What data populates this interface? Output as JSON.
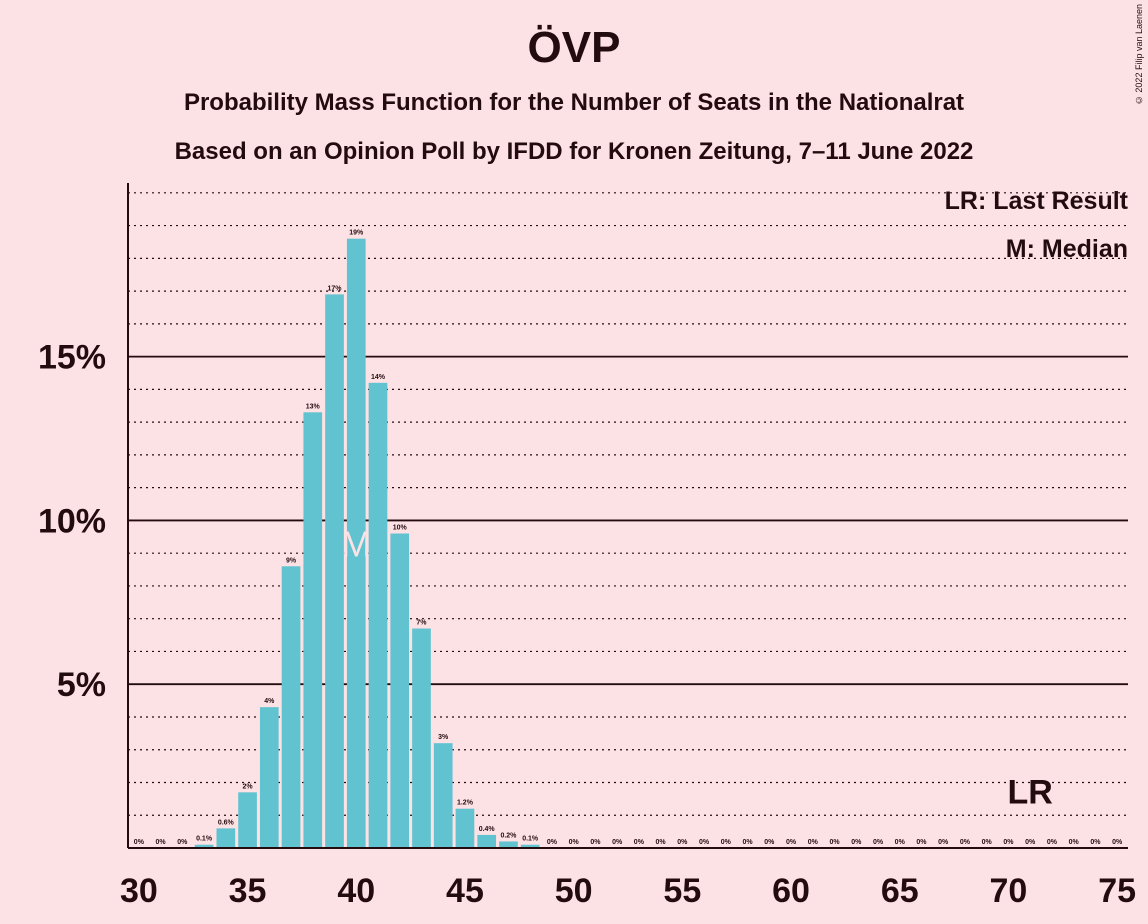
{
  "title": "ÖVP",
  "subtitle_1": "Probability Mass Function for the Number of Seats in the Nationalrat",
  "subtitle_2": "Based on an Opinion Poll by IFDD for Kronen Zeitung, 7–11 June 2022",
  "copyright": "© 2022 Filip van Laenen",
  "legend": {
    "last_result": "LR: Last Result",
    "median": "M: Median"
  },
  "colors": {
    "background": "#fde2e5",
    "bar": "#62c3d0",
    "text": "#230c10"
  },
  "chart_data": {
    "type": "bar",
    "x": [
      30,
      31,
      32,
      33,
      34,
      35,
      36,
      37,
      38,
      39,
      40,
      41,
      42,
      43,
      44,
      45,
      46,
      47,
      48,
      49,
      50,
      51,
      52,
      53,
      54,
      55,
      56,
      57,
      58,
      59,
      60,
      61,
      62,
      63,
      64,
      65,
      66,
      67,
      68,
      69,
      70,
      71,
      72,
      73,
      74,
      75
    ],
    "values": [
      0,
      0,
      0,
      0.1,
      0.6,
      1.7,
      4.3,
      8.6,
      13.3,
      16.9,
      18.6,
      14.2,
      9.6,
      6.7,
      3.2,
      1.2,
      0.4,
      0.2,
      0.1,
      0,
      0,
      0,
      0,
      0,
      0,
      0,
      0,
      0,
      0,
      0,
      0,
      0,
      0,
      0,
      0,
      0,
      0,
      0,
      0,
      0,
      0,
      0,
      0,
      0,
      0,
      0
    ],
    "labels": [
      "0%",
      "0%",
      "0%",
      "0.1%",
      "0.6%",
      "2%",
      "4%",
      "9%",
      "13%",
      "17%",
      "19%",
      "14%",
      "10%",
      "7%",
      "3%",
      "1.2%",
      "0.4%",
      "0.2%",
      "0.1%",
      "0%",
      "0%",
      "0%",
      "0%",
      "0%",
      "0%",
      "0%",
      "0%",
      "0%",
      "0%",
      "0%",
      "0%",
      "0%",
      "0%",
      "0%",
      "0%",
      "0%",
      "0%",
      "0%",
      "0%",
      "0%",
      "0%",
      "0%",
      "0%",
      "0%",
      "0%",
      "0%"
    ],
    "x_ticks": [
      30,
      35,
      40,
      45,
      50,
      55,
      60,
      65,
      70,
      75
    ],
    "x_tick_labels": [
      "30",
      "35",
      "40",
      "45",
      "50",
      "55",
      "60",
      "65",
      "70",
      "75"
    ],
    "y_ticks": [
      5,
      10,
      15
    ],
    "y_tick_labels": [
      "5%",
      "10%",
      "15%"
    ],
    "ylim": [
      0,
      20.3
    ],
    "xlim": [
      29.5,
      75.5
    ],
    "minor_gridlines_step": 1,
    "median_seat": 40,
    "median_marker": "M",
    "last_result_seat": 71,
    "last_result_marker": "LR",
    "xlabel": "",
    "ylabel": ""
  }
}
